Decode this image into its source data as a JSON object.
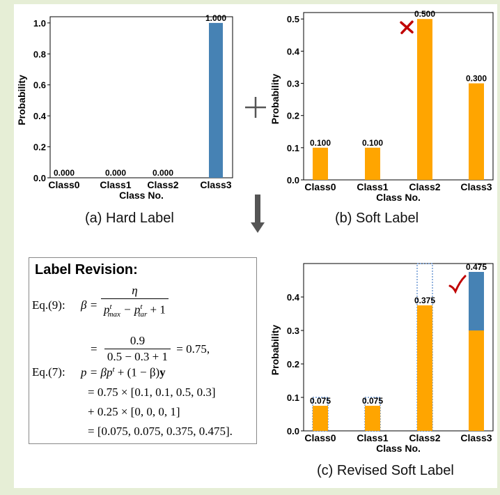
{
  "chart_data": [
    {
      "id": "hard",
      "type": "bar",
      "categories": [
        "Class0",
        "Class1",
        "Class2",
        "Class3"
      ],
      "values": [
        0.0,
        0.0,
        0.0,
        1.0
      ],
      "labels": [
        "0.000",
        "0.000",
        "0.000",
        "1.000"
      ],
      "ylim": [
        0,
        1.04
      ],
      "yticks": [
        0.0,
        0.2,
        0.4,
        0.6,
        0.8,
        1.0
      ],
      "ytick_labels": [
        "0.0",
        "0.2",
        "0.4",
        "0.6",
        "0.8",
        "1.0"
      ],
      "xlabel": "Class No.",
      "ylabel": "Probability",
      "color": "#4682b4",
      "caption": "(a) Hard Label"
    },
    {
      "id": "soft",
      "type": "bar",
      "categories": [
        "Class0",
        "Class1",
        "Class2",
        "Class3"
      ],
      "values": [
        0.1,
        0.1,
        0.5,
        0.3
      ],
      "labels": [
        "0.100",
        "0.100",
        "0.500",
        "0.300"
      ],
      "ylim": [
        0,
        0.52
      ],
      "yticks": [
        0.0,
        0.1,
        0.2,
        0.3,
        0.4,
        0.5
      ],
      "ytick_labels": [
        "0.0",
        "0.1",
        "0.2",
        "0.3",
        "0.4",
        "0.5"
      ],
      "xlabel": "Class No.",
      "ylabel": "Probability",
      "color": "#ffa500",
      "marker": "cross",
      "marker_class": "Class2",
      "caption": "(b) Soft Label"
    },
    {
      "id": "revised",
      "type": "bar",
      "categories": [
        "Class0",
        "Class1",
        "Class2",
        "Class3"
      ],
      "series": [
        {
          "values": [
            0.075,
            0.075,
            0.375,
            0.3
          ],
          "color": "#ffa500"
        },
        {
          "values": [
            0,
            0,
            0,
            0.175
          ],
          "color": "#4682b4"
        }
      ],
      "original_soft": [
        0.1,
        0.1,
        0.5,
        0.3
      ],
      "labels": [
        "0.075",
        "0.075",
        "0.375",
        "0.475"
      ],
      "ylim": [
        0,
        0.5
      ],
      "yticks": [
        0.0,
        0.1,
        0.2,
        0.3,
        0.4
      ],
      "ytick_labels": [
        "0.0",
        "0.1",
        "0.2",
        "0.3",
        "0.4"
      ],
      "xlabel": "Class No.",
      "ylabel": "Probability",
      "marker": "check",
      "marker_class": "Class3",
      "caption": "(c) Revised Soft Label"
    }
  ],
  "label_revision": {
    "title": "Label Revision:",
    "eq9_label": "Eq.(9):",
    "eq9_lhs": "β =",
    "eq9_num": "η",
    "eq9_den": "p",
    "eq9_den_sup1": "t",
    "eq9_den_sub1": "max",
    "eq9_den_minus": " − p",
    "eq9_den_sup2": "t",
    "eq9_den_sub2": "tar",
    "eq9_den_plus": " + 1",
    "eq9_eq2": "=",
    "eq9_num2": "0.9",
    "eq9_den2": "0.5 − 0.3 + 1",
    "eq9_result": "= 0.75,",
    "eq7_label": "Eq.(7):",
    "eq7_line1": "p = βp",
    "eq7_line1_sup": "t",
    "eq7_line1_rest": " + (1 − β)",
    "eq7_line1_y": "y",
    "eq7_line2": "= 0.75 × [0.1, 0.1, 0.5, 0.3]",
    "eq7_line3": "+ 0.25 × [0, 0, 0, 1]",
    "eq7_line4": "= [0.075, 0.075, 0.375, 0.475]."
  },
  "operators": {
    "plus_icon": "plus-icon",
    "arrow_icon": "down-arrow-icon"
  },
  "colors": {
    "orange": "#ffa500",
    "blue": "#4682b4",
    "cross": "#c00000",
    "check": "#c00000",
    "dotted": "#4a7fc8",
    "arrow": "#555555",
    "background": "#e6eed6"
  }
}
